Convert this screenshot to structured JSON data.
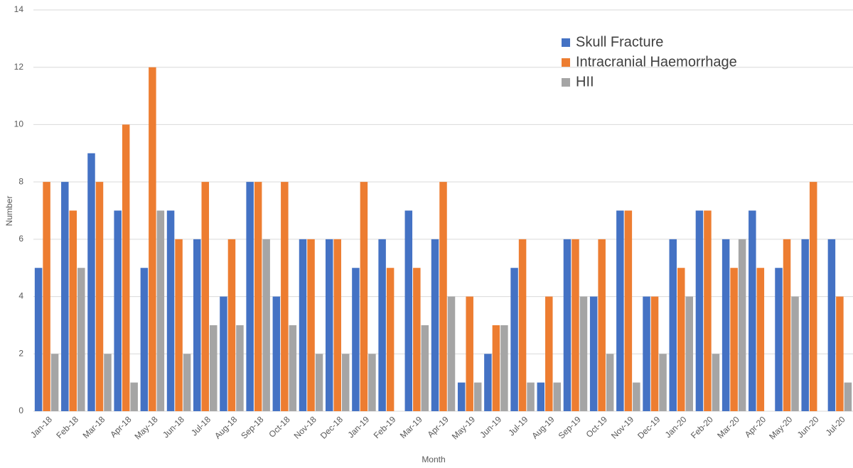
{
  "chart_data": {
    "type": "bar",
    "x_label": "Month",
    "y_label": "Number",
    "categories": [
      "Jan-18",
      "Feb-18",
      "Mar-18",
      "Apr-18",
      "May-18",
      "Jun-18",
      "Jul-18",
      "Aug-18",
      "Sep-18",
      "Oct-18",
      "Nov-18",
      "Dec-18",
      "Jan-19",
      "Feb-19",
      "Mar-19",
      "Apr-19",
      "May-19",
      "Jun-19",
      "Jul-19",
      "Aug-19",
      "Sep-19",
      "Oct-19",
      "Nov-19",
      "Dec-19",
      "Jan-20",
      "Feb-20",
      "Mar-20",
      "Apr-20",
      "May-20",
      "Jun-20",
      "Jul-20"
    ],
    "series": [
      {
        "name": "Skull Fracture",
        "color": "#4472c4",
        "values": [
          5,
          8,
          9,
          7,
          5,
          7,
          6,
          4,
          8,
          4,
          6,
          6,
          5,
          6,
          7,
          6,
          1,
          2,
          5,
          1,
          6,
          4,
          7,
          4,
          6,
          7,
          6,
          7,
          5,
          6,
          6
        ]
      },
      {
        "name": "Intracranial Haemorrhage",
        "color": "#ed7d31",
        "values": [
          8,
          7,
          8,
          10,
          12,
          6,
          8,
          6,
          8,
          8,
          6,
          6,
          8,
          5,
          5,
          8,
          4,
          3,
          6,
          4,
          6,
          6,
          7,
          4,
          5,
          7,
          5,
          5,
          6,
          8,
          4
        ]
      },
      {
        "name": "HII",
        "color": "#a5a5a5",
        "values": [
          2,
          5,
          2,
          1,
          7,
          2,
          3,
          3,
          6,
          3,
          2,
          2,
          2,
          0,
          3,
          4,
          1,
          3,
          1,
          1,
          4,
          2,
          1,
          2,
          4,
          2,
          6,
          0,
          4,
          0,
          1
        ]
      }
    ],
    "ylim": [
      0,
      14
    ],
    "yticks": [
      0,
      2,
      4,
      6,
      8,
      10,
      12,
      14
    ],
    "grid": true,
    "legend": "upper right"
  }
}
